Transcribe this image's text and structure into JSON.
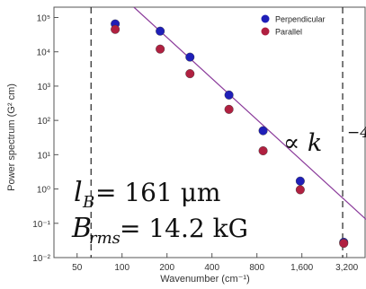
{
  "chart_data": {
    "type": "scatter",
    "title": "",
    "xlabel": "Wavenumber (cm⁻¹)",
    "ylabel": "Power spectrum (G² cm)",
    "x_scale": "log",
    "y_scale": "log",
    "xlim": [
      35,
      4300
    ],
    "ylim": [
      0.01,
      200000
    ],
    "x_ticks": [
      50,
      100,
      200,
      400,
      800,
      1600,
      3200
    ],
    "x_tick_labels": [
      "50",
      "100",
      "200",
      "400",
      "800",
      "1,600",
      "3,200"
    ],
    "y_ticks": [
      0.01,
      0.1,
      1,
      10,
      100,
      1000,
      10000,
      100000
    ],
    "y_tick_labels": [
      "10⁻²",
      "10⁻¹",
      "10⁰",
      "10¹",
      "10²",
      "10³",
      "10⁴",
      "10⁵"
    ],
    "grid": false,
    "legend_position": "top-right",
    "series": [
      {
        "name": "Perpendicular",
        "color": "#1f1fb8",
        "x": [
          90,
          180,
          285,
          520,
          880,
          1560,
          3050
        ],
        "y": [
          65000,
          40000,
          7000,
          550,
          50,
          1.7,
          0.028
        ]
      },
      {
        "name": "Parallel",
        "color": "#b02040",
        "x": [
          90,
          180,
          285,
          520,
          880,
          1560,
          3050
        ],
        "y": [
          45000,
          12000,
          2300,
          210,
          13,
          0.95,
          0.026
        ]
      }
    ],
    "fit_line": {
      "color": "#8a3a9a",
      "slope": -4,
      "x": [
        120,
        4300
      ],
      "y": [
        200000,
        0.13
      ]
    },
    "vertical_lines": [
      62,
      3000
    ],
    "annotations": {
      "power_law_base": "∝ k",
      "power_law_exp": "−4",
      "lb_label": "l",
      "lb_sub": "B",
      "lb_value": " = 161 μm",
      "brms_label": "B",
      "brms_sub": "rms",
      "brms_value": " = 14.2 kG"
    }
  }
}
